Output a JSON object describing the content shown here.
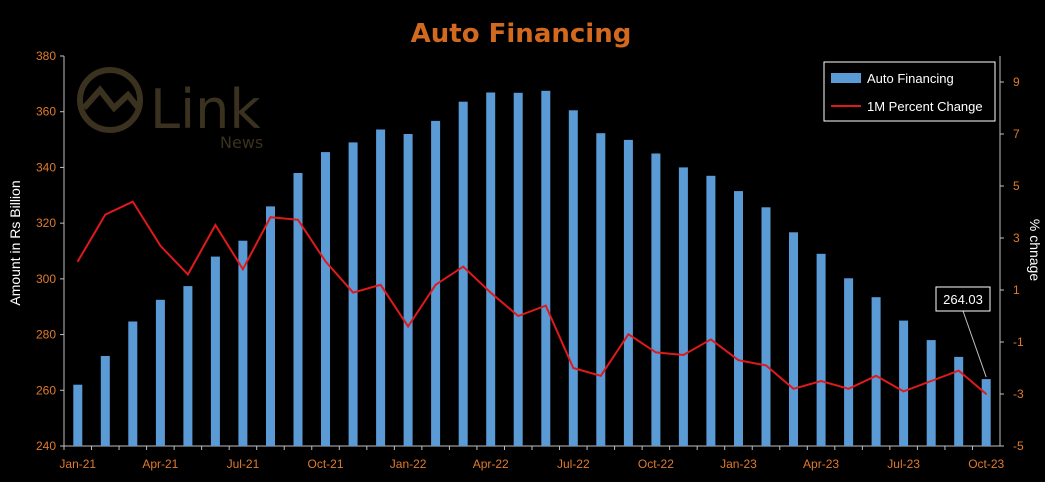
{
  "chart_data": {
    "type": "bar+line",
    "title": "Auto Financing",
    "ylabel": "Amount in Rs Billion",
    "y2label": "% chnage",
    "ylim": [
      240,
      380
    ],
    "yticks": [
      240,
      260,
      280,
      300,
      320,
      340,
      360,
      380
    ],
    "y2lim": [
      -5,
      10
    ],
    "y2ticks": [
      -5,
      -3,
      -1,
      1,
      3,
      5,
      7,
      9
    ],
    "categories": [
      "Jan-21",
      "Feb-21",
      "Mar-21",
      "Apr-21",
      "May-21",
      "Jun-21",
      "Jul-21",
      "Aug-21",
      "Sep-21",
      "Oct-21",
      "Nov-21",
      "Dec-21",
      "Jan-22",
      "Feb-22",
      "Mar-22",
      "Apr-22",
      "May-22",
      "Jun-22",
      "Jul-22",
      "Aug-22",
      "Sep-22",
      "Oct-22",
      "Nov-22",
      "Dec-22",
      "Jan-23",
      "Feb-23",
      "Mar-23",
      "Apr-23",
      "May-23",
      "Jun-23",
      "Jul-23",
      "Aug-23",
      "Sep-23",
      "Oct-23"
    ],
    "xtick_labels": [
      "Jan-21",
      "Apr-21",
      "Jul-21",
      "Oct-21",
      "Jan-22",
      "Apr-22",
      "Jul-22",
      "Oct-22",
      "Jan-23",
      "Apr-23",
      "Jul-23",
      "Oct-23"
    ],
    "series": [
      {
        "name": "Auto Financing",
        "type": "bar",
        "axis": "left",
        "color": "#5b9bd5",
        "values": [
          262.0,
          272.3,
          284.7,
          292.5,
          297.4,
          308.0,
          313.7,
          326.0,
          338.0,
          345.5,
          349.0,
          353.6,
          352.0,
          356.7,
          363.6,
          366.9,
          366.8,
          367.5,
          360.5,
          352.3,
          349.9,
          345.0,
          340.0,
          337.0,
          331.5,
          325.7,
          316.7,
          309.0,
          300.2,
          293.4,
          285.0,
          278.0,
          272.0,
          264.03
        ]
      },
      {
        "name": "1M Percent Change",
        "type": "line",
        "axis": "right",
        "color": "#e0191b",
        "values": [
          2.1,
          3.9,
          4.4,
          2.7,
          1.6,
          3.5,
          1.8,
          3.8,
          3.7,
          2.1,
          0.9,
          1.2,
          -0.4,
          1.2,
          1.9,
          0.9,
          0.0,
          0.4,
          -2.0,
          -2.3,
          -0.7,
          -1.4,
          -1.5,
          -0.9,
          -1.7,
          -1.9,
          -2.8,
          -2.5,
          -2.8,
          -2.3,
          -2.9,
          -2.5,
          -2.1,
          -3.0
        ]
      }
    ],
    "annotation": {
      "text": "264.03",
      "category": "Oct-23"
    },
    "legend": {
      "placement": "top-right",
      "items": [
        "Auto Financing",
        "1M Percent Change"
      ]
    },
    "grid": false
  },
  "watermark": {
    "brand": "Link",
    "sub": "News"
  }
}
